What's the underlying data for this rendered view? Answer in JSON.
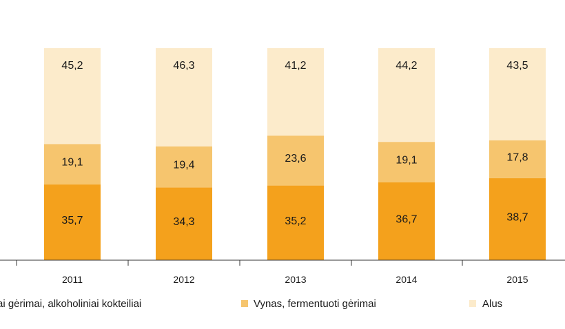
{
  "chart_data": {
    "type": "bar",
    "stacked": true,
    "orientation": "vertical",
    "categories": [
      "2011",
      "2012",
      "2013",
      "2014",
      "2015"
    ],
    "series": [
      {
        "name": "ai gėrimai, alkoholiniai kokteiliai",
        "color": "#f4a11c",
        "values": [
          35.7,
          34.3,
          35.2,
          36.7,
          38.7
        ],
        "labels": [
          "35,7",
          "34,3",
          "35,2",
          "36,7",
          "38,7"
        ]
      },
      {
        "name": "Vynas, fermentuoti gėrimai",
        "color": "#f6c56e",
        "values": [
          19.1,
          19.4,
          23.6,
          19.1,
          17.8
        ],
        "labels": [
          "19,1",
          "19,4",
          "23,6",
          "19,1",
          "17,8"
        ]
      },
      {
        "name": "Alus",
        "color": "#fcebcb",
        "values": [
          45.2,
          46.3,
          41.2,
          44.2,
          43.5
        ],
        "labels": [
          "45,2",
          "46,3",
          "41,2",
          "44,2",
          "43,5"
        ]
      }
    ],
    "ylim": [
      0,
      100
    ],
    "legend_position": "bottom",
    "grid": false
  }
}
